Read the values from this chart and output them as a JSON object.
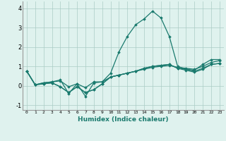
{
  "xlabel": "Humidex (Indice chaleur)",
  "background_color": "#dff2ee",
  "grid_color": "#aaccc5",
  "line_color": "#1a7a6e",
  "x_values": [
    0,
    1,
    2,
    3,
    4,
    5,
    6,
    7,
    8,
    9,
    10,
    11,
    12,
    13,
    14,
    15,
    16,
    17,
    18,
    19,
    20,
    21,
    22,
    23
  ],
  "series": [
    [
      0.75,
      0.05,
      0.15,
      0.2,
      0.3,
      -0.4,
      0.1,
      -0.55,
      0.15,
      0.2,
      0.65,
      1.75,
      2.55,
      3.15,
      3.45,
      3.85,
      3.5,
      2.55,
      1.0,
      0.85,
      0.8,
      1.1,
      1.35,
      1.35
    ],
    [
      0.75,
      0.05,
      0.1,
      0.15,
      -0.05,
      -0.35,
      -0.05,
      -0.35,
      -0.2,
      0.1,
      0.45,
      0.55,
      0.65,
      0.75,
      0.9,
      1.0,
      1.05,
      1.1,
      0.9,
      0.8,
      0.7,
      0.85,
      1.1,
      1.15
    ],
    [
      0.75,
      0.05,
      0.1,
      0.15,
      -0.05,
      -0.35,
      -0.05,
      -0.35,
      -0.2,
      0.1,
      0.45,
      0.55,
      0.65,
      0.75,
      0.85,
      0.95,
      1.0,
      1.05,
      0.95,
      0.9,
      0.85,
      1.0,
      1.2,
      1.3
    ],
    [
      0.75,
      0.05,
      0.15,
      0.2,
      0.25,
      -0.05,
      0.1,
      -0.1,
      0.2,
      0.2,
      0.45,
      0.55,
      0.65,
      0.75,
      0.9,
      1.0,
      1.05,
      1.1,
      0.9,
      0.85,
      0.75,
      0.9,
      1.1,
      1.15
    ]
  ],
  "ylim": [
    -1.25,
    4.35
  ],
  "yticks": [
    -1,
    0,
    1,
    2,
    3,
    4
  ],
  "xlim": [
    -0.5,
    23.5
  ],
  "xticks": [
    0,
    1,
    2,
    3,
    4,
    5,
    6,
    7,
    8,
    9,
    10,
    11,
    12,
    13,
    14,
    15,
    16,
    17,
    18,
    19,
    20,
    21,
    22,
    23
  ],
  "marker": "D",
  "marker_size": 1.8,
  "linewidth": 0.9
}
